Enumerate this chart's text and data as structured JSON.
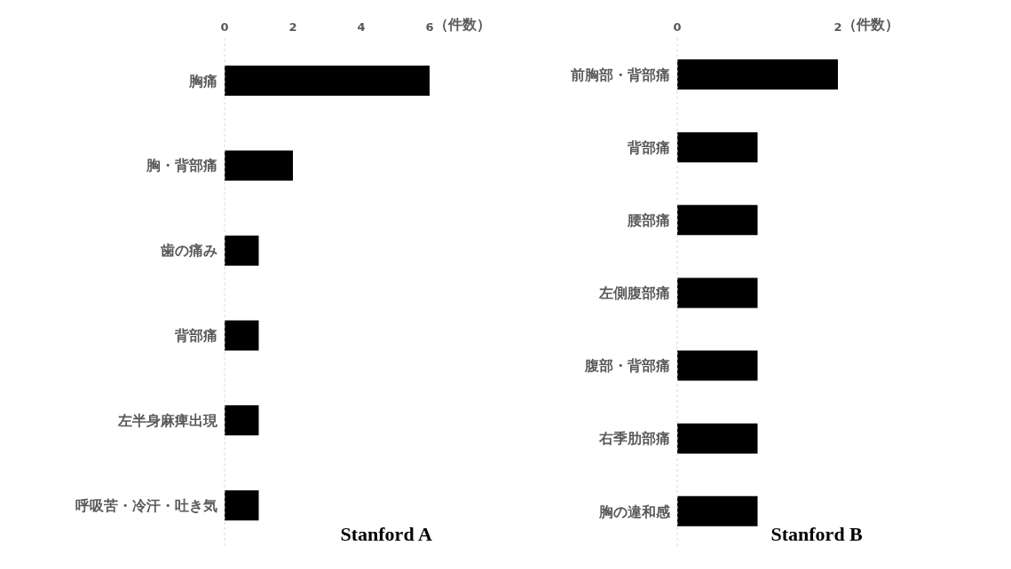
{
  "chart_data": [
    {
      "type": "bar",
      "orientation": "horizontal",
      "title": "Stanford A",
      "xlabel": "（件数）",
      "categories": [
        "胸痛",
        "胸・背部痛",
        "歯の痛み",
        "背部痛",
        "左半身麻痺出現",
        "呼吸苦・冷汗・吐き気"
      ],
      "values": [
        6,
        2,
        1,
        1,
        1,
        1
      ],
      "color": "#000000",
      "xlim": [
        0,
        6
      ],
      "xticks": [
        0,
        2,
        4,
        6
      ],
      "grid": false
    },
    {
      "type": "bar",
      "orientation": "horizontal",
      "title": "Stanford B",
      "xlabel": "（件数）",
      "categories": [
        "前胸部・背部痛",
        "背部痛",
        "腰部痛",
        "左側腹部痛",
        "腹部・背部痛",
        "右季肋部痛",
        "胸の違和感"
      ],
      "values": [
        2,
        1,
        1,
        1,
        1,
        1,
        1
      ],
      "color": "#000000",
      "xlim": [
        0,
        2
      ],
      "xticks": [
        0,
        2
      ],
      "grid": false
    }
  ]
}
